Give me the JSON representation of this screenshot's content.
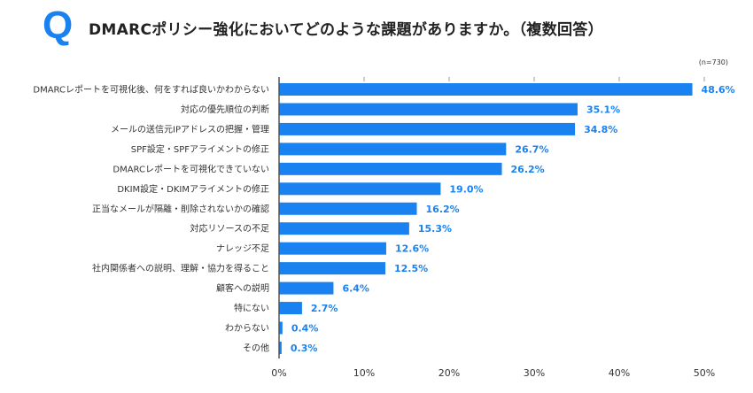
{
  "header": {
    "q_mark": "Q",
    "title": "DMARCポリシー強化においてどのような課題がありますか。（複数回答）",
    "sample_size": "(n=730)"
  },
  "chart_data": {
    "type": "bar",
    "orientation": "horizontal",
    "title": "DMARCポリシー強化においてどのような課題がありますか。（複数回答）",
    "categories": [
      "DMARCレポートを可視化後、何をすれば良いかわからない",
      "対応の優先順位の判断",
      "メールの送信元IPアドレスの把握・管理",
      "SPF設定・SPFアライメントの修正",
      "DMARCレポートを可視化できていない",
      "DKIM設定・DKIMアライメントの修正",
      "正当なメールが隔離・削除されないかの確認",
      "対応リソースの不足",
      "ナレッジ不足",
      "社内関係者への説明、理解・協力を得ること",
      "顧客への説明",
      "特にない",
      "わからない",
      "その他"
    ],
    "values": [
      48.6,
      35.1,
      34.8,
      26.7,
      26.2,
      19.0,
      16.2,
      15.3,
      12.6,
      12.5,
      6.4,
      2.7,
      0.4,
      0.3
    ],
    "value_labels": [
      "48.6%",
      "35.1%",
      "34.8%",
      "26.7%",
      "26.2%",
      "19.0%",
      "16.2%",
      "15.3%",
      "12.6%",
      "12.5%",
      "6.4%",
      "2.7%",
      "0.4%",
      "0.3%"
    ],
    "xlim": [
      0,
      50
    ],
    "xticks": [
      "0%",
      "10%",
      "20%",
      "30%",
      "40%",
      "50%"
    ],
    "grid": false,
    "bar_color": "#1a82f0",
    "label_color": "#1a82f0"
  }
}
